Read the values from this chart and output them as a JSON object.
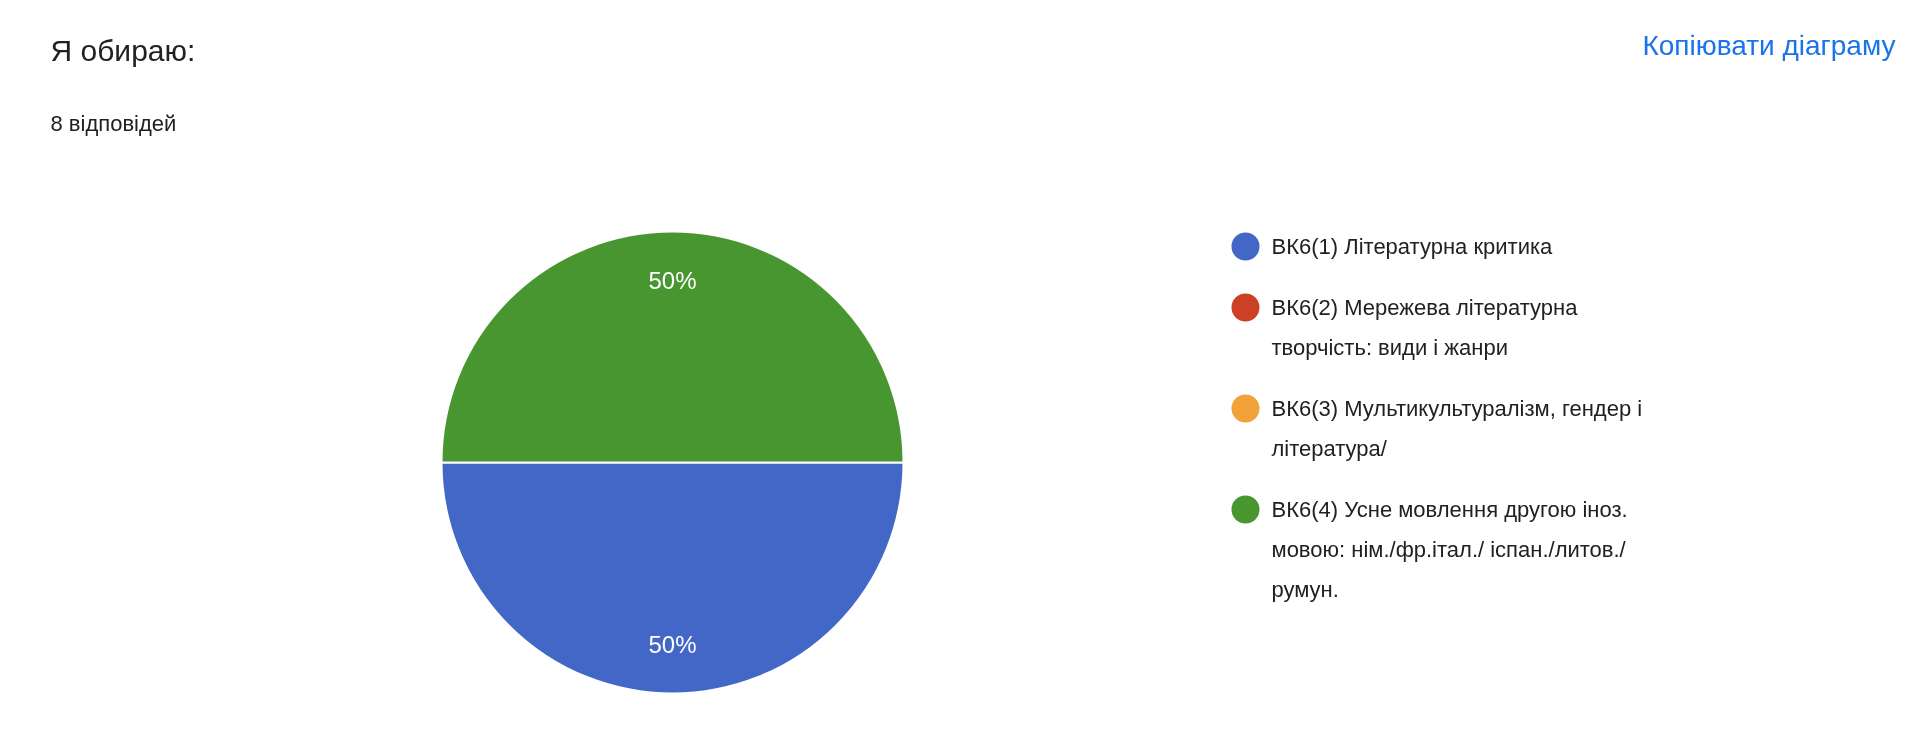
{
  "chart_data": {
    "type": "pie",
    "title": "Я обираю:",
    "subtitle": "8 відповідей",
    "categories": [
      "ВК6(1) Літературна критика",
      "ВК6(2) Мережева літературна творчість: види і жанри",
      "ВК6(3) Мультикультуралізм, гендер і література/",
      "ВК6(4) Усне мовлення другою іноз. мовою: нім./фр.італ./ іспан./литов./ румун."
    ],
    "values": [
      50,
      0,
      0,
      50
    ],
    "colors": [
      "#4267c7",
      "#cc4125",
      "#f1a33a",
      "#47962f"
    ],
    "value_labels": [
      "50%",
      null,
      null,
      "50%"
    ],
    "legend": "right",
    "annotations": [
      "Копіювати діаграму"
    ]
  }
}
